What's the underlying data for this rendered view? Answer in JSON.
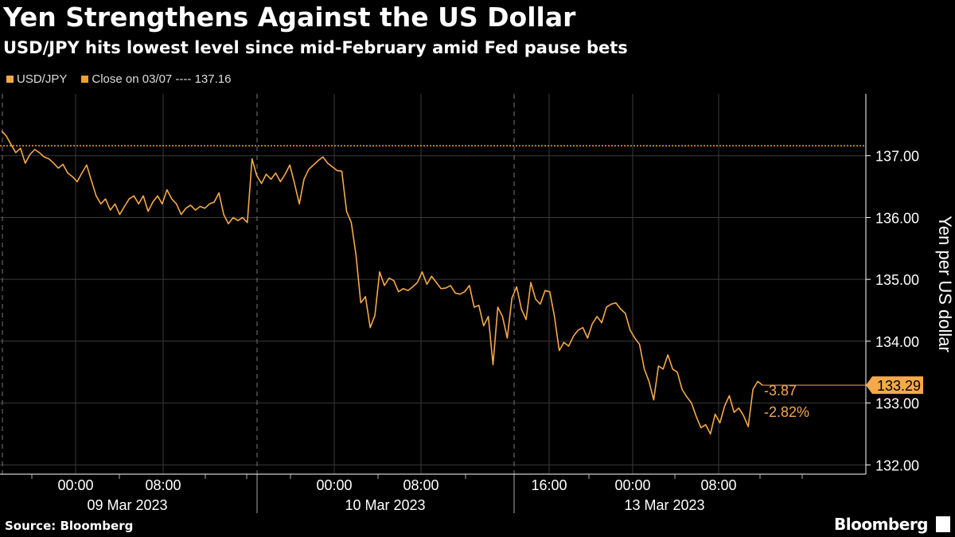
{
  "header": {
    "title": "Yen Strengthens Against the US Dollar",
    "subtitle": "USD/JPY hits lowest level since mid-February amid Fed pause bets"
  },
  "legend": {
    "series_label": "USD/JPY",
    "close_label": "Close on 03/07 ---- 137.16",
    "series_color": "#f5a94a",
    "close_color": "#f0a030"
  },
  "footer": {
    "source": "Source: Bloomberg",
    "brand": "Bloomberg"
  },
  "chart_data": {
    "type": "line",
    "title": "Yen Strengthens Against the US Dollar",
    "subtitle": "USD/JPY hits lowest level since mid-February amid Fed pause bets",
    "ylabel": "Yen per US dollar",
    "xlabel": "",
    "ylim": [
      131.85,
      138.0
    ],
    "y_ticks": [
      "137.00",
      "136.00",
      "135.00",
      "134.00",
      "133.00",
      "132.00"
    ],
    "x_tick_labels": [
      "00:00",
      "08:00",
      "00:00",
      "08:00",
      "16:00",
      "00:00",
      "08:00"
    ],
    "date_labels": [
      "09 Mar 2023",
      "10 Mar 2023",
      "13 Mar 2023"
    ],
    "reference_line": {
      "label": "Close on 03/07",
      "value": 137.16
    },
    "last_value": {
      "price": "133.29",
      "change": "-3.87",
      "change_pct": "-2.82%"
    },
    "grid": true,
    "axis_position": "right",
    "series": [
      {
        "name": "USD/JPY",
        "values": [
          137.4,
          137.32,
          137.18,
          137.05,
          137.12,
          136.88,
          137.02,
          137.1,
          137.05,
          136.98,
          136.95,
          136.88,
          136.8,
          136.86,
          136.72,
          136.66,
          136.58,
          136.72,
          136.85,
          136.6,
          136.35,
          136.22,
          136.3,
          136.12,
          136.22,
          136.05,
          136.18,
          136.3,
          136.35,
          136.22,
          136.35,
          136.1,
          136.25,
          136.35,
          136.22,
          136.45,
          136.3,
          136.22,
          136.05,
          136.15,
          136.2,
          136.12,
          136.18,
          136.15,
          136.22,
          136.25,
          136.4,
          136.05,
          135.9,
          136.0,
          135.95,
          136.0,
          135.92,
          136.95,
          136.68,
          136.55,
          136.7,
          136.62,
          136.72,
          136.58,
          136.7,
          136.85,
          136.55,
          136.22,
          136.62,
          136.78,
          136.85,
          136.92,
          136.98,
          136.88,
          136.82,
          136.76,
          136.75,
          136.1,
          135.92,
          135.4,
          134.62,
          134.72,
          134.22,
          134.42,
          135.12,
          134.9,
          135.02,
          134.98,
          134.8,
          134.85,
          134.82,
          134.88,
          134.95,
          135.12,
          134.92,
          135.05,
          134.95,
          134.85,
          134.86,
          134.9,
          134.78,
          134.76,
          134.8,
          134.9,
          134.55,
          134.58,
          134.25,
          134.4,
          133.62,
          134.55,
          134.4,
          134.05,
          134.7,
          134.88,
          134.52,
          134.35,
          134.95,
          134.68,
          134.6,
          134.82,
          134.8,
          134.4,
          133.85,
          133.98,
          133.92,
          134.08,
          134.18,
          134.22,
          134.05,
          134.28,
          134.4,
          134.3,
          134.55,
          134.6,
          134.62,
          134.52,
          134.45,
          134.18,
          134.05,
          133.95,
          133.55,
          133.35,
          133.05,
          133.6,
          133.55,
          133.78,
          133.55,
          133.5,
          133.22,
          133.1,
          133.0,
          132.78,
          132.6,
          132.65,
          132.5,
          132.82,
          132.68,
          132.95,
          133.12,
          132.85,
          132.92,
          132.8,
          132.62,
          133.22,
          133.35,
          133.29
        ]
      }
    ]
  }
}
